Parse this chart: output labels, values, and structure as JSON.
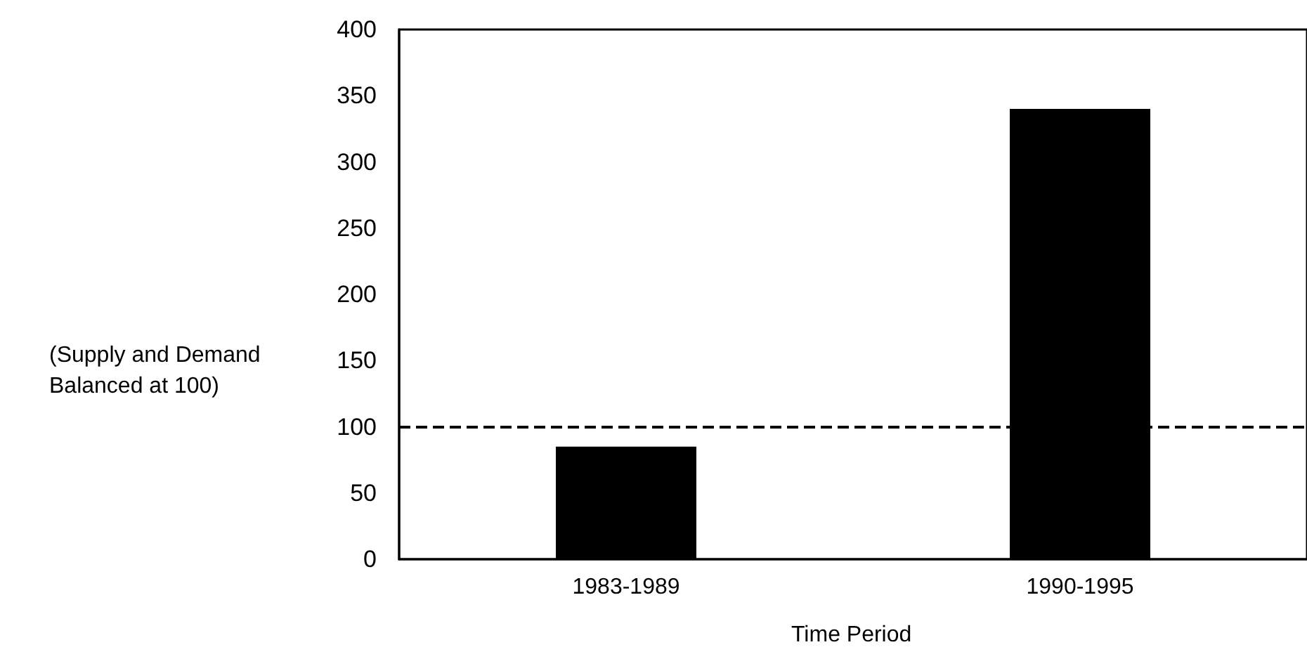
{
  "chart_data": {
    "type": "bar",
    "ylabel": "(Supply and Demand Balanced at 100)",
    "xlabel": "Time Period",
    "categories": [
      "1983-1989",
      "1990-1995"
    ],
    "values": [
      85,
      340
    ],
    "color": "#000000",
    "ylim": [
      0,
      400
    ],
    "yticks": [
      0,
      50,
      100,
      150,
      200,
      250,
      300,
      350,
      400
    ],
    "ref_lines": [
      {
        "axis": "y",
        "value": 100,
        "color": "#000000",
        "line_style": "dashed"
      }
    ]
  }
}
